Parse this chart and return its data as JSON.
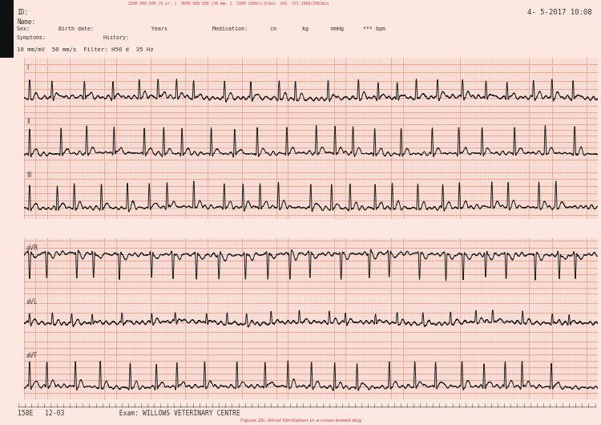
{
  "title_text": "4- 5-2017 10:08",
  "footer_text": "158E   12-03              Exam: WILLOWS VETERINARY CENTRE",
  "top_strip_text": "2500 500 500 (0 yr- )  0000 500 500 (50 mm- 1  1000 1000/s-0/min  AVG  371 1000/100/min",
  "bg_color": "#fce8e0",
  "grid_major_color": "#e8a898",
  "grid_minor_color": "#f0c8c0",
  "ecg_color": "#222222",
  "leads": [
    "I",
    "II",
    "III",
    "aVR",
    "aVL",
    "aVF"
  ],
  "fs": 500,
  "duration": 10.0,
  "hr_bpm": 140,
  "fig_width": 7.5,
  "fig_height": 5.3,
  "dpi": 100
}
